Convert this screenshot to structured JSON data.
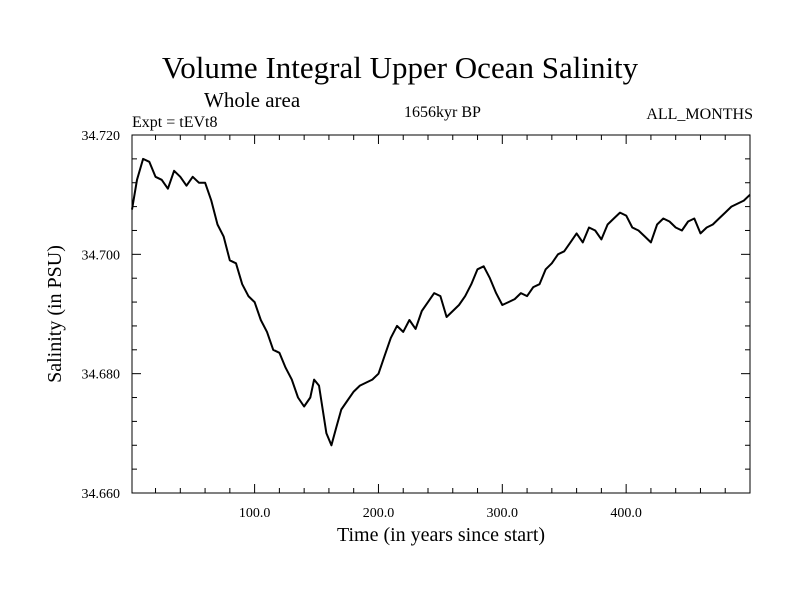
{
  "header": {
    "title": "Volume Integral Upper Ocean Salinity",
    "subtitle": "Whole area",
    "experiment": "Expt = tEVt8",
    "period": "1656kyr BP",
    "months": "ALL_MONTHS"
  },
  "chart_data": {
    "type": "line",
    "title": "Volume Integral Upper Ocean Salinity",
    "xlabel": "Time (in years since start)",
    "ylabel": "Salinity (in PSU)",
    "xlim": [
      1,
      500
    ],
    "ylim": [
      34.66,
      34.72
    ],
    "xticks": [
      100,
      200,
      300,
      400
    ],
    "xtick_labels": [
      "100.0",
      "200.0",
      "300.0",
      "400.0"
    ],
    "yticks": [
      34.66,
      34.68,
      34.7,
      34.72
    ],
    "ytick_labels": [
      "34.660",
      "34.680",
      "34.700",
      "34.720"
    ],
    "grid": false,
    "series": [
      {
        "name": "Salinity",
        "x": [
          1,
          5,
          10,
          15,
          20,
          25,
          30,
          35,
          40,
          45,
          50,
          55,
          60,
          65,
          70,
          75,
          80,
          85,
          90,
          95,
          100,
          105,
          110,
          115,
          120,
          125,
          130,
          135,
          140,
          145,
          148,
          152,
          155,
          158,
          162,
          166,
          170,
          175,
          180,
          185,
          190,
          195,
          200,
          205,
          210,
          215,
          220,
          225,
          230,
          235,
          240,
          245,
          250,
          255,
          260,
          265,
          270,
          275,
          280,
          285,
          290,
          295,
          300,
          305,
          310,
          315,
          320,
          325,
          330,
          335,
          340,
          345,
          350,
          355,
          360,
          365,
          370,
          375,
          380,
          385,
          390,
          395,
          400,
          405,
          410,
          415,
          420,
          425,
          430,
          435,
          440,
          445,
          450,
          455,
          460,
          465,
          470,
          475,
          480,
          485,
          490,
          495,
          500
        ],
        "values": [
          34.7075,
          34.7125,
          34.716,
          34.7155,
          34.713,
          34.7125,
          34.711,
          34.714,
          34.713,
          34.7115,
          34.713,
          34.712,
          34.712,
          34.709,
          34.705,
          34.703,
          34.699,
          34.6985,
          34.695,
          34.693,
          34.692,
          34.689,
          34.687,
          34.684,
          34.6835,
          34.681,
          34.679,
          34.676,
          34.6745,
          34.676,
          34.679,
          34.678,
          34.674,
          34.67,
          34.668,
          34.671,
          34.674,
          34.6755,
          34.677,
          34.678,
          34.6785,
          34.679,
          34.68,
          34.683,
          34.686,
          34.688,
          34.687,
          34.689,
          34.6875,
          34.6905,
          34.692,
          34.6935,
          34.693,
          34.6895,
          34.6905,
          34.6915,
          34.693,
          34.695,
          34.6975,
          34.698,
          34.696,
          34.6935,
          34.6915,
          34.692,
          34.6925,
          34.6935,
          34.693,
          34.6945,
          34.695,
          34.6975,
          34.6985,
          34.7,
          34.7005,
          34.702,
          34.7035,
          34.702,
          34.7045,
          34.704,
          34.7025,
          34.705,
          34.706,
          34.707,
          34.7065,
          34.7045,
          34.704,
          34.703,
          34.702,
          34.705,
          34.706,
          34.7055,
          34.7045,
          34.704,
          34.7055,
          34.706,
          34.7035,
          34.7045,
          34.705,
          34.706,
          34.707,
          34.708,
          34.7085,
          34.709,
          34.71
        ]
      }
    ]
  }
}
